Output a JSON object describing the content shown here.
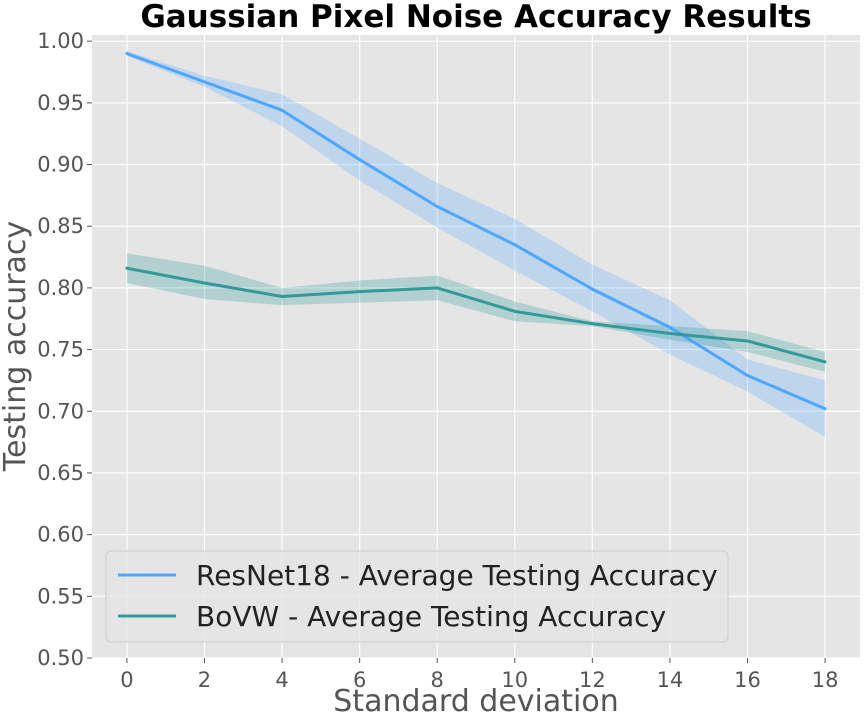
{
  "chart_data": {
    "type": "line",
    "title": "Gaussian Pixel Noise Accuracy Results",
    "xlabel": "Standard deviation",
    "ylabel": "Testing accuracy",
    "x": [
      0,
      2,
      4,
      6,
      8,
      10,
      12,
      14,
      16,
      18
    ],
    "xlim": [
      -0.9,
      18.9
    ],
    "ylim": [
      0.5,
      1.005
    ],
    "x_ticks": [
      "0",
      "2",
      "4",
      "6",
      "8",
      "10",
      "12",
      "14",
      "16",
      "18"
    ],
    "y_ticks": [
      "0.50",
      "0.55",
      "0.60",
      "0.65",
      "0.70",
      "0.75",
      "0.80",
      "0.85",
      "0.90",
      "0.95",
      "1.00"
    ],
    "grid": true,
    "legend_position": "lower-left",
    "series": [
      {
        "name": "ResNet18 - Average Testing Accuracy",
        "color": "#4da6ff",
        "values": [
          0.99,
          0.967,
          0.944,
          0.904,
          0.866,
          0.835,
          0.799,
          0.768,
          0.729,
          0.702
        ],
        "lower": [
          0.988,
          0.963,
          0.931,
          0.887,
          0.849,
          0.814,
          0.781,
          0.746,
          0.716,
          0.679
        ],
        "upper": [
          0.992,
          0.972,
          0.957,
          0.921,
          0.885,
          0.856,
          0.819,
          0.79,
          0.742,
          0.725
        ]
      },
      {
        "name": "BoVW - Average Testing Accuracy",
        "color": "#339999",
        "values": [
          0.816,
          0.804,
          0.793,
          0.797,
          0.8,
          0.781,
          0.771,
          0.763,
          0.757,
          0.74
        ],
        "lower": [
          0.804,
          0.791,
          0.786,
          0.788,
          0.79,
          0.773,
          0.769,
          0.758,
          0.748,
          0.732
        ],
        "upper": [
          0.828,
          0.818,
          0.8,
          0.806,
          0.81,
          0.789,
          0.773,
          0.769,
          0.765,
          0.748
        ]
      }
    ]
  }
}
